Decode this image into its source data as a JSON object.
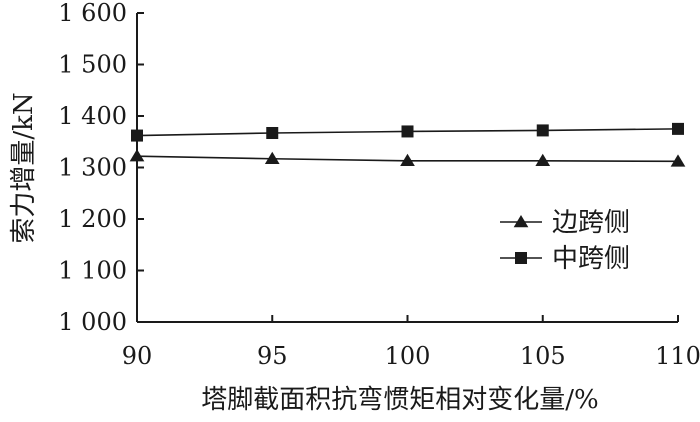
{
  "chart_data": {
    "type": "line",
    "title": "",
    "xlabel": "塔脚截面积抗弯惯矩相对变化量/%",
    "ylabel": "索力增量/kN",
    "x": [
      90,
      95,
      100,
      105,
      110
    ],
    "xlim": [
      90,
      110
    ],
    "ylim": [
      1000,
      1600
    ],
    "x_ticks": [
      "90",
      "95",
      "100",
      "105",
      "110"
    ],
    "y_ticks": [
      "1 000",
      "1 100",
      "1 200",
      "1 300",
      "1 400",
      "1 500",
      "1 600"
    ],
    "grid": false,
    "legend_position": "right-lower",
    "series": [
      {
        "name": "边跨侧",
        "marker": "triangle",
        "values": [
          1322,
          1317,
          1313,
          1313,
          1312
        ]
      },
      {
        "name": "中跨侧",
        "marker": "square",
        "values": [
          1362,
          1367,
          1370,
          1372,
          1375
        ]
      }
    ],
    "colors": {
      "line": "#1a1a1a",
      "marker": "#1a1a1a",
      "axis": "#1a1a1a"
    }
  }
}
